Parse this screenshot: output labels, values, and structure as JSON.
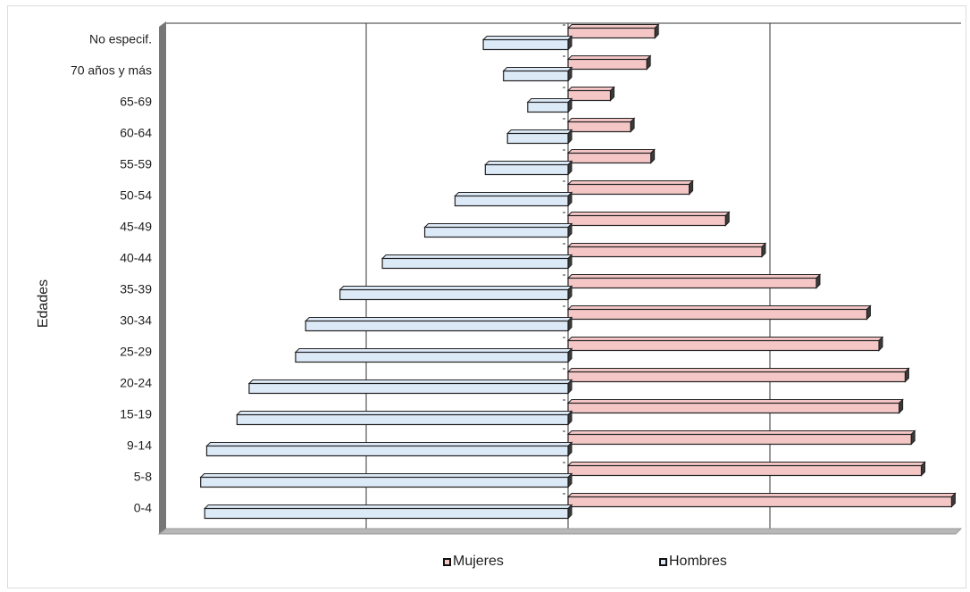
{
  "chart_data": {
    "type": "bar",
    "orientation": "horizontal",
    "subtype": "population-pyramid",
    "ylabel": "Edades",
    "categories": [
      "0-4",
      "5-8",
      "9-14",
      "15-19",
      "20-24",
      "25-29",
      "30-34",
      "35-39",
      "40-44",
      "45-49",
      "50-54",
      "55-59",
      "60-64",
      "65-69",
      "70 años y más",
      "No especif."
    ],
    "series": [
      {
        "name": "Mujeres",
        "color": "#f4c6c6",
        "side": "right",
        "values": [
          190,
          175,
          170,
          164,
          167,
          154,
          148,
          123,
          96,
          78,
          60,
          41,
          31,
          21,
          39,
          43
        ]
      },
      {
        "name": "Hombres",
        "color": "#dce9f7",
        "side": "left",
        "values": [
          180,
          182,
          179,
          164,
          158,
          135,
          130,
          113,
          92,
          71,
          56,
          41,
          30,
          20,
          32,
          42
        ]
      }
    ],
    "xlim": [
      -200,
      200
    ],
    "grid": true,
    "legend_position": "bottom"
  },
  "legend": {
    "mujeres_label": "Mujeres",
    "hombres_label": "Hombres"
  }
}
